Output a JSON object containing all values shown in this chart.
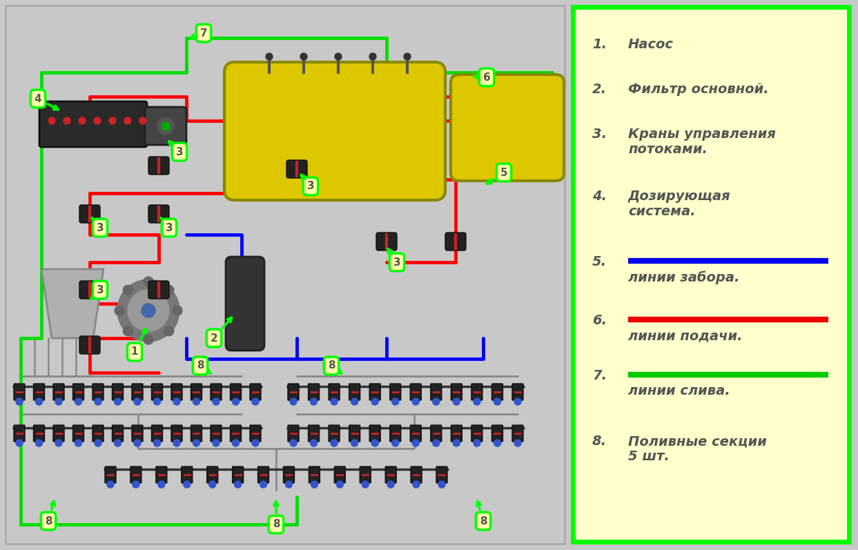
{
  "bg_color": "#c8c8c8",
  "legend_bg": "#ffffcc",
  "legend_border": "#00ff00",
  "legend_items": [
    {
      "num": "1.",
      "text": "Насос",
      "has_line": false,
      "line_color": null
    },
    {
      "num": "2.",
      "text": "Фильтр основной.",
      "has_line": false,
      "line_color": null
    },
    {
      "num": "3.",
      "text": "Краны управления\nпотоками.",
      "has_line": false,
      "line_color": null
    },
    {
      "num": "4.",
      "text": "Дозирующая\nсистема.",
      "has_line": false,
      "line_color": null
    },
    {
      "num": "5.",
      "text": "линии забора.",
      "has_line": true,
      "line_color": "#0000ee"
    },
    {
      "num": "6.",
      "text": "линии подачи.",
      "has_line": true,
      "line_color": "#ee0000"
    },
    {
      "num": "7.",
      "text": "линии слива.",
      "has_line": true,
      "line_color": "#00cc00"
    },
    {
      "num": "8.",
      "text": "Поливные секции\n5 шт.",
      "has_line": false,
      "line_color": null
    }
  ],
  "text_color": "#666666",
  "label_fontsize": 14,
  "line_lw": 6,
  "green": "#00dd00",
  "red": "#ff0000",
  "blue": "#0000ff",
  "gray_pipe": "#888888",
  "bubble_fc": "#ffffaa",
  "bubble_ec": "#00ff00",
  "bubble_fs": 11,
  "pipe_lw": 3.5,
  "tank_yellow": "#ddc800",
  "tank_edge": "#888800"
}
